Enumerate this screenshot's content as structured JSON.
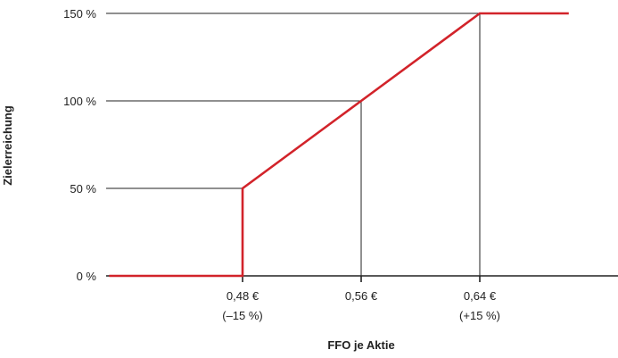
{
  "chart_data": {
    "type": "line",
    "title": "",
    "xlabel": "FFO je Aktie",
    "ylabel": "Zielerreichung",
    "y_ticks": [
      "0 %",
      "50 %",
      "100 %",
      "150 %"
    ],
    "x_ticks": [
      {
        "value": 0.48,
        "label": "0,48 €",
        "sublabel": "(–15 %)"
      },
      {
        "value": 0.56,
        "label": "0,56 €",
        "sublabel": ""
      },
      {
        "value": 0.64,
        "label": "0,64 €",
        "sublabel": "(+15 %)"
      }
    ],
    "series": [
      {
        "x": [
          0.39,
          0.48,
          0.48,
          0.56,
          0.64,
          0.7
        ],
        "y": [
          0,
          0,
          50,
          100,
          150,
          150
        ]
      }
    ],
    "reference_lines": [
      {
        "x": 0.48,
        "y": 50
      },
      {
        "x": 0.56,
        "y": 100
      },
      {
        "x": 0.64,
        "y": 150
      }
    ],
    "xlim": [
      0.39,
      0.74
    ],
    "ylim": [
      0,
      150
    ],
    "grid": false,
    "colors": {
      "line": "#d2232a",
      "axis": "#222222"
    }
  }
}
